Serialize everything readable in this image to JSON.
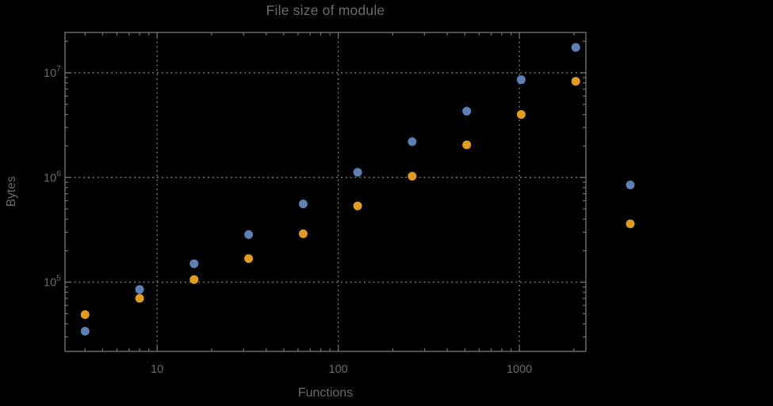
{
  "colors": {
    "background": "#000000",
    "frame": "#6e6e6e",
    "grid": "#757575",
    "text": "#696969",
    "series_blue": "#5e81b5",
    "series_orange": "#e19c24"
  },
  "chart_data": {
    "type": "scatter",
    "title": "File size of module",
    "xlabel": "Functions",
    "ylabel": "Bytes",
    "x_scale": "log",
    "y_scale": "log",
    "xlim": [
      3.1,
      2330
    ],
    "ylim": [
      21800,
      24300000
    ],
    "x_major_ticks": [
      10,
      100,
      1000
    ],
    "x_tick_labels": [
      "10",
      "100",
      "1000"
    ],
    "y_major_ticks": [
      100000,
      1000000,
      10000000
    ],
    "y_tick_exponents": [
      5,
      6,
      7
    ],
    "grid": "dotted gridlines at decade ticks",
    "legend": "none",
    "marker_radius": 5.5,
    "series": [
      {
        "name": "blue-series",
        "color": "#5e81b5",
        "points": [
          [
            4,
            34000
          ],
          [
            8,
            85000
          ],
          [
            16,
            150000
          ],
          [
            32,
            285000
          ],
          [
            64,
            560000
          ],
          [
            128,
            1120000
          ],
          [
            256,
            2200000
          ],
          [
            512,
            4300000
          ],
          [
            1024,
            8600000
          ],
          [
            2048,
            17500000
          ],
          [
            4096,
            850000
          ]
        ]
      },
      {
        "name": "orange-series",
        "color": "#e19c24",
        "points": [
          [
            4,
            49000
          ],
          [
            8,
            70000
          ],
          [
            16,
            106000
          ],
          [
            32,
            168000
          ],
          [
            64,
            290000
          ],
          [
            128,
            535000
          ],
          [
            256,
            1030000
          ],
          [
            512,
            2050000
          ],
          [
            1024,
            4000000
          ],
          [
            2048,
            8300000
          ],
          [
            4096,
            360000
          ]
        ]
      }
    ]
  }
}
